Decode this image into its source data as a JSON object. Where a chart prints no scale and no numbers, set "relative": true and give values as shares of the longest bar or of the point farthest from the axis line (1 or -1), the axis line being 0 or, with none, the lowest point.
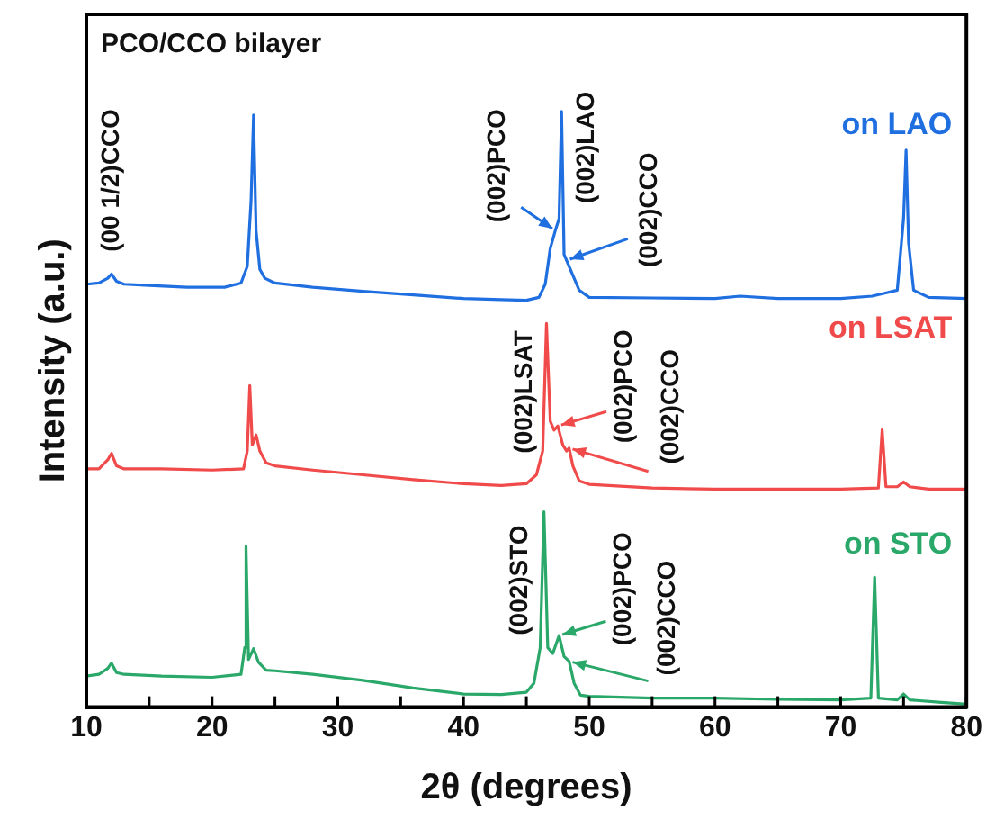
{
  "chart_data": {
    "type": "line",
    "title": "PCO/CCO bilayer",
    "xlabel": "2θ (degrees)",
    "ylabel": "Intensity (a.u.)",
    "relative": true,
    "xlim": [
      10,
      80
    ],
    "xticks": [
      10,
      {
        "value": 15,
        "label": null
      },
      20,
      {
        "value": 25,
        "label": null
      },
      30,
      {
        "value": 35,
        "label": null
      },
      40,
      {
        "value": 45,
        "label": null
      },
      50,
      {
        "value": 55,
        "label": null
      },
      60,
      {
        "value": 65,
        "label": null
      },
      70,
      {
        "value": 75,
        "label": null
      },
      80
    ],
    "grid": false,
    "legend": false,
    "marker": "none",
    "line_style": "solid",
    "series": [
      {
        "name": "on LAO",
        "color": "#1f6fe0",
        "x": [
          10,
          11,
          11.7,
          12,
          12.4,
          13,
          15,
          18,
          21,
          22.3,
          22.8,
          23.1,
          23.3,
          23.5,
          23.8,
          24.2,
          25,
          28,
          32,
          36,
          40,
          43,
          45,
          46,
          46.5,
          46.9,
          47.3,
          47.6,
          47.8,
          48.0,
          48.2,
          48.7,
          49.2,
          50,
          55,
          60,
          62,
          65,
          70,
          72.5,
          73.5,
          74.5,
          75.0,
          75.2,
          75.4,
          75.8,
          77,
          80
        ],
        "values": [
          0.71,
          0.712,
          0.72,
          0.727,
          0.715,
          0.71,
          0.708,
          0.705,
          0.705,
          0.712,
          0.74,
          0.85,
          0.994,
          0.8,
          0.735,
          0.72,
          0.712,
          0.705,
          0.698,
          0.692,
          0.686,
          0.684,
          0.683,
          0.688,
          0.71,
          0.77,
          0.8,
          0.82,
          1.0,
          0.76,
          0.75,
          0.725,
          0.7,
          0.688,
          0.687,
          0.686,
          0.69,
          0.686,
          0.686,
          0.69,
          0.695,
          0.7,
          0.82,
          0.935,
          0.78,
          0.7,
          0.688,
          0.686
        ]
      },
      {
        "name": "on LSAT",
        "color": "#f04a4a",
        "x": [
          10,
          11,
          11.7,
          12,
          12.4,
          13,
          16,
          20,
          22.5,
          22.8,
          23.0,
          23.2,
          23.5,
          23.8,
          24.3,
          25,
          28,
          32,
          36,
          40,
          43,
          45,
          45.8,
          46.3,
          46.6,
          46.9,
          47.2,
          47.5,
          47.9,
          48.2,
          48.4,
          48.7,
          49.2,
          50,
          55,
          60,
          65,
          70,
          73,
          73.3,
          73.6,
          74.5,
          75,
          75.5,
          77,
          80
        ],
        "values": [
          0.4,
          0.4,
          0.415,
          0.426,
          0.405,
          0.4,
          0.4,
          0.398,
          0.4,
          0.43,
          0.54,
          0.44,
          0.457,
          0.43,
          0.41,
          0.405,
          0.398,
          0.39,
          0.382,
          0.375,
          0.372,
          0.375,
          0.39,
          0.43,
          0.644,
          0.48,
          0.465,
          0.472,
          0.44,
          0.43,
          0.435,
          0.405,
          0.38,
          0.374,
          0.368,
          0.366,
          0.366,
          0.366,
          0.368,
          0.466,
          0.37,
          0.37,
          0.378,
          0.37,
          0.366,
          0.366
        ]
      },
      {
        "name": "on STO",
        "color": "#2aa86a",
        "x": [
          10,
          11,
          11.7,
          12,
          12.4,
          13,
          16,
          20,
          22.3,
          22.6,
          22.7,
          22.9,
          23.3,
          23.7,
          24.3,
          25,
          28,
          32,
          36,
          40,
          43,
          45,
          45.6,
          46.1,
          46.4,
          46.7,
          47.1,
          47.6,
          48.0,
          48.4,
          48.8,
          49.3,
          50,
          55,
          60,
          65,
          70,
          72.4,
          72.7,
          73.0,
          74.5,
          75,
          75.5,
          78,
          80
        ],
        "values": [
          0.052,
          0.055,
          0.065,
          0.074,
          0.058,
          0.055,
          0.052,
          0.05,
          0.055,
          0.1,
          0.27,
          0.08,
          0.098,
          0.075,
          0.062,
          0.061,
          0.055,
          0.045,
          0.032,
          0.022,
          0.021,
          0.025,
          0.04,
          0.1,
          0.328,
          0.1,
          0.09,
          0.12,
          0.085,
          0.077,
          0.04,
          0.02,
          0.018,
          0.015,
          0.015,
          0.013,
          0.012,
          0.015,
          0.218,
          0.015,
          0.012,
          0.022,
          0.012,
          0.008,
          0.005
        ]
      }
    ],
    "annotations": [
      {
        "text": "(00 1/2)CCO",
        "x": 12,
        "y": 0.727
      },
      {
        "text": "(002)PCO",
        "x": 47.3,
        "y": 0.8
      },
      {
        "text": "(002)LAO",
        "x": 47.8,
        "y": 1.0
      },
      {
        "text": "(002)CCO",
        "x": 48.2,
        "y": 0.75
      },
      {
        "text": "(002)LSAT",
        "x": 46.6,
        "y": 0.644
      },
      {
        "text": "(002)PCO",
        "x": 47.5,
        "y": 0.472
      },
      {
        "text": "(002)CCO",
        "x": 48.4,
        "y": 0.435
      },
      {
        "text": "(002)STO",
        "x": 46.4,
        "y": 0.328
      },
      {
        "text": "(002)PCO",
        "x": 47.6,
        "y": 0.12
      },
      {
        "text": "(002)CCO",
        "x": 48.4,
        "y": 0.077
      }
    ]
  }
}
